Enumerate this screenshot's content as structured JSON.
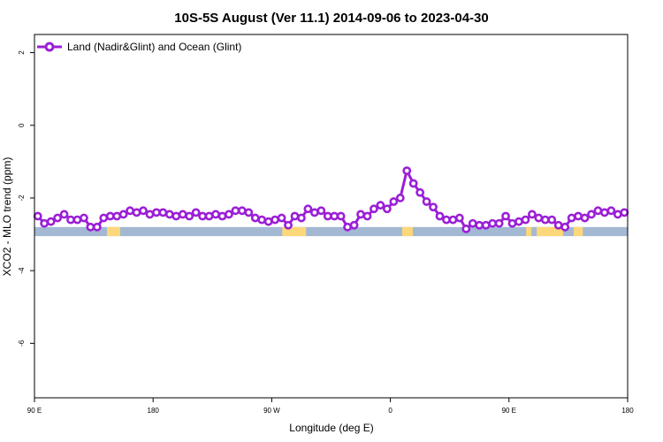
{
  "chart_data": {
    "type": "line",
    "title": "10S-5S August (Ver 11.1)   2014-09-06 to 2023-04-30",
    "xlabel": "Longitude (deg E)",
    "ylabel": "XCO2 - MLO trend (ppm)",
    "xlim": [
      90,
      540
    ],
    "ylim": [
      -7.5,
      2.5
    ],
    "x_ticks": [
      {
        "value": 90,
        "label": "90 E"
      },
      {
        "value": 180,
        "label": "180"
      },
      {
        "value": 270,
        "label": "90 W"
      },
      {
        "value": 360,
        "label": "0"
      },
      {
        "value": 450,
        "label": "90 E"
      },
      {
        "value": 540,
        "label": "180"
      }
    ],
    "y_ticks": [
      {
        "value": 2,
        "label": "2"
      },
      {
        "value": 0,
        "label": "0"
      },
      {
        "value": -2,
        "label": "-2"
      },
      {
        "value": -4,
        "label": "-4"
      },
      {
        "value": -6,
        "label": "-6"
      }
    ],
    "legend": {
      "position": "top-left",
      "label": "Land (Nadir&Glint) and Ocean (Glint)"
    },
    "grid": false,
    "colors": {
      "series": "#9b1fd6",
      "ocean": "#a3b8d3",
      "land": "#fdd87a"
    },
    "surface_strip": {
      "y_range": [
        -3.05,
        -2.8
      ],
      "land_segments": [
        [
          145,
          150
        ],
        [
          146,
          155
        ],
        [
          278,
          283
        ],
        [
          282,
          296
        ],
        [
          369,
          377
        ],
        [
          463,
          467
        ],
        [
          471,
          491
        ],
        [
          499,
          506
        ]
      ]
    },
    "series": [
      {
        "name": "Land (Nadir&Glint) and Ocean (Glint)",
        "x": [
          92.5,
          97.5,
          102.5,
          107.5,
          112.5,
          117.5,
          122.5,
          127.5,
          132.5,
          137.5,
          142.5,
          147.5,
          152.5,
          157.5,
          162.5,
          167.5,
          172.5,
          177.5,
          182.5,
          187.5,
          192.5,
          197.5,
          202.5,
          207.5,
          212.5,
          217.5,
          222.5,
          227.5,
          232.5,
          237.5,
          242.5,
          247.5,
          252.5,
          257.5,
          262.5,
          267.5,
          272.5,
          277.5,
          282.5,
          287.5,
          292.5,
          297.5,
          302.5,
          307.5,
          312.5,
          317.5,
          322.5,
          327.5,
          332.5,
          337.5,
          342.5,
          347.5,
          352.5,
          357.5,
          362.5,
          367.5,
          372.5,
          377.5,
          382.5,
          387.5,
          392.5,
          397.5,
          402.5,
          407.5,
          412.5,
          417.5,
          422.5,
          427.5,
          432.5,
          437.5,
          442.5,
          447.5,
          452.5,
          457.5,
          462.5,
          467.5,
          472.5,
          477.5,
          482.5,
          487.5,
          492.5,
          497.5,
          502.5,
          507.5,
          512.5,
          517.5,
          522.5,
          527.5,
          532.5,
          537.5
        ],
        "values": [
          -2.5,
          -2.7,
          -2.65,
          -2.55,
          -2.45,
          -2.6,
          -2.6,
          -2.55,
          -2.8,
          -2.8,
          -2.55,
          -2.5,
          -2.5,
          -2.45,
          -2.35,
          -2.4,
          -2.35,
          -2.45,
          -2.4,
          -2.4,
          -2.45,
          -2.5,
          -2.45,
          -2.5,
          -2.4,
          -2.5,
          -2.5,
          -2.45,
          -2.5,
          -2.45,
          -2.35,
          -2.35,
          -2.4,
          -2.55,
          -2.6,
          -2.65,
          -2.6,
          -2.55,
          -2.75,
          -2.5,
          -2.55,
          -2.3,
          -2.4,
          -2.35,
          -2.5,
          -2.5,
          -2.5,
          -2.8,
          -2.75,
          -2.45,
          -2.5,
          -2.3,
          -2.2,
          -2.3,
          -2.1,
          -2.0,
          -1.25,
          -1.6,
          -1.85,
          -2.1,
          -2.25,
          -2.5,
          -2.6,
          -2.6,
          -2.55,
          -2.85,
          -2.7,
          -2.75,
          -2.75,
          -2.7,
          -2.7,
          -2.5,
          -2.7,
          -2.65,
          -2.6,
          -2.45,
          -2.55,
          -2.6,
          -2.6,
          -2.75,
          -2.8,
          -2.55,
          -2.5,
          -2.55,
          -2.45,
          -2.35,
          -2.4,
          -2.35,
          -2.45,
          -2.4
        ]
      }
    ]
  }
}
